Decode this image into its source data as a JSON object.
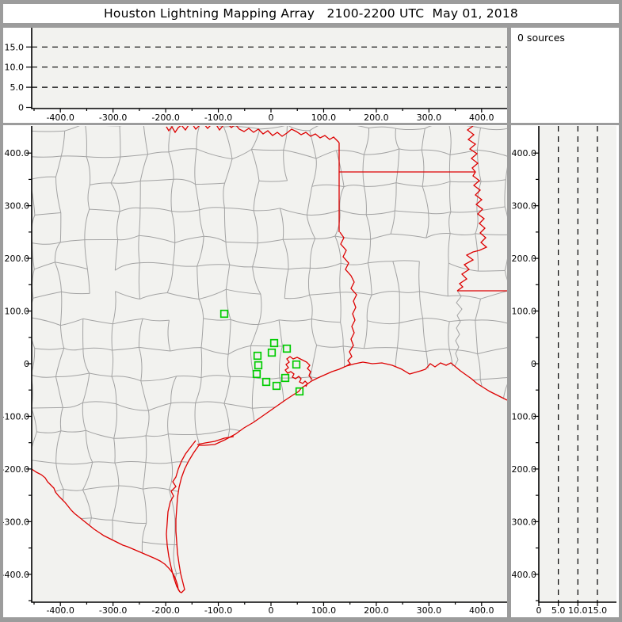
{
  "title": "Houston Lightning Mapping Array   2100-2200 UTC  May 01, 2018",
  "sources_panel": {
    "count_label": "0 sources"
  },
  "colors": {
    "frame": "#9c9c9c",
    "panel": "#ffffff",
    "plot_bg": "#f2f2ef",
    "axis": "#000000",
    "county_lines": "#a3a3a3",
    "state_borders": "#dd0000",
    "stations": "#00cc00",
    "dashed_lines": "#000000"
  },
  "axes": {
    "ew_km": {
      "range": [
        -454,
        448
      ],
      "major_ticks": [
        -400,
        -300,
        -200,
        -100,
        0,
        100,
        200,
        300,
        400
      ],
      "major_labels": [
        "-400.0",
        "-300.0",
        "-200.0",
        "-100.0",
        "0",
        "100.0",
        "200.0",
        "300.0",
        "400.0"
      ],
      "minor_step": 50
    },
    "ns_km": {
      "range": [
        -453,
        451
      ],
      "major_ticks": [
        -400,
        -300,
        -200,
        -100,
        0,
        100,
        200,
        300,
        400
      ],
      "major_labels": [
        "-400.0",
        "-300.0",
        "-200.0",
        "-100.0",
        "0",
        "100.0",
        "200.0",
        "300.0",
        "400.0"
      ],
      "minor_step": 50
    },
    "alt_km": {
      "range": [
        0,
        20
      ],
      "ticks": [
        0,
        5,
        10,
        15
      ],
      "tick_labels": [
        "0",
        "5.0",
        "10.0",
        "15.0"
      ],
      "dashed_levels": [
        5,
        10,
        15
      ]
    }
  },
  "stations_km": [
    [
      -88.8,
      94.8
    ],
    [
      6.0,
      39.1
    ],
    [
      1.5,
      21.1
    ],
    [
      -25.6,
      15.0
    ],
    [
      30.1,
      28.6
    ],
    [
      -24.1,
      -3.0
    ],
    [
      48.2,
      -1.5
    ],
    [
      -27.1,
      -19.6
    ],
    [
      27.1,
      -27.1
    ],
    [
      -9.0,
      -34.6
    ],
    [
      10.5,
      -42.1
    ],
    [
      54.2,
      -52.7
    ]
  ],
  "chart_data": [
    {
      "type": "scatter",
      "series": [],
      "xlim": [
        -454,
        448
      ],
      "ylim": [
        0,
        20
      ],
      "x_tick_labels": [
        "-400.0",
        "-300.0",
        "-200.0",
        "-100.0",
        "0",
        "100.0",
        "200.0",
        "300.0",
        "400.0"
      ],
      "y_tick_labels": [
        "0",
        "5.0",
        "10.0",
        "15.0"
      ],
      "dashed_y_gridlines": [
        5,
        10,
        15
      ],
      "points": []
    },
    {
      "type": "scatter",
      "series": [],
      "xlim": [
        -454,
        448
      ],
      "ylim": [
        -453,
        451
      ],
      "x_tick_labels": [
        "-400.0",
        "-300.0",
        "-200.0",
        "-100.0",
        "0",
        "100.0",
        "200.0",
        "300.0",
        "400.0"
      ],
      "y_tick_labels": [
        "-400.0",
        "-300.0",
        "-200.0",
        "-100.0",
        "0",
        "100.0",
        "200.0",
        "300.0",
        "400.0"
      ],
      "station_markers_km": [
        [
          -88.8,
          94.8
        ],
        [
          6.0,
          39.1
        ],
        [
          1.5,
          21.1
        ],
        [
          -25.6,
          15.0
        ],
        [
          30.1,
          28.6
        ],
        [
          -24.1,
          -3.0
        ],
        [
          48.2,
          -1.5
        ],
        [
          -27.1,
          -19.6
        ],
        [
          27.1,
          -27.1
        ],
        [
          -9.0,
          -34.6
        ],
        [
          10.5,
          -42.1
        ],
        [
          54.2,
          -52.7
        ]
      ],
      "points": []
    },
    {
      "type": "scatter",
      "series": [],
      "xlim": [
        0,
        20
      ],
      "ylim": [
        -453,
        451
      ],
      "x_tick_labels": [
        "0",
        "5.0",
        "10.0",
        "15.0"
      ],
      "y_tick_labels": [
        "-400.0",
        "-300.0",
        "-200.0",
        "-100.0",
        "0",
        "100.0",
        "200.0",
        "300.0",
        "400.0"
      ],
      "dashed_x_gridlines": [
        5,
        10,
        15
      ],
      "points": []
    }
  ]
}
